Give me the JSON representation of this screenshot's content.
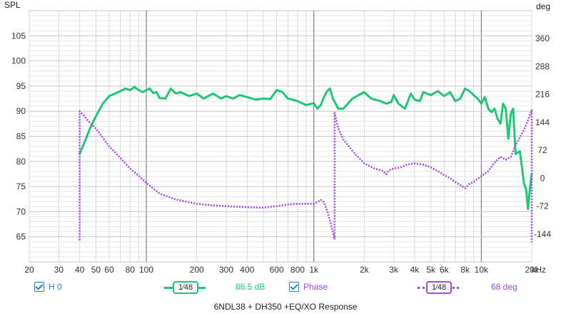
{
  "chart_data": {
    "type": "line",
    "title": "6NDL38 + DH350 +EQ/XO Response",
    "xlabel": "",
    "ylabel": "SPL",
    "y2label": "deg",
    "x_unit_label": "kHz",
    "x_scale": "log",
    "xlim": [
      20,
      20000
    ],
    "ylim": [
      60,
      110
    ],
    "y2lim": [
      -216,
      432
    ],
    "x_ticks": [
      {
        "v": 20,
        "label": "20"
      },
      {
        "v": 30,
        "label": "30"
      },
      {
        "v": 40,
        "label": "40"
      },
      {
        "v": 50,
        "label": "50"
      },
      {
        "v": 60,
        "label": "60"
      },
      {
        "v": 80,
        "label": "80"
      },
      {
        "v": 100,
        "label": "100"
      },
      {
        "v": 200,
        "label": "200"
      },
      {
        "v": 300,
        "label": "300"
      },
      {
        "v": 400,
        "label": "400"
      },
      {
        "v": 600,
        "label": "600"
      },
      {
        "v": 800,
        "label": "800"
      },
      {
        "v": 1000,
        "label": "1k"
      },
      {
        "v": 2000,
        "label": "2k"
      },
      {
        "v": 3000,
        "label": "3k"
      },
      {
        "v": 4000,
        "label": "4k"
      },
      {
        "v": 5000,
        "label": "5k"
      },
      {
        "v": 6000,
        "label": "6k"
      },
      {
        "v": 8000,
        "label": "8k"
      },
      {
        "v": 10000,
        "label": "10k"
      },
      {
        "v": 20000,
        "label": "20k"
      }
    ],
    "y_ticks": [
      {
        "v": 65,
        "label": "65"
      },
      {
        "v": 70,
        "label": "70"
      },
      {
        "v": 75,
        "label": "75"
      },
      {
        "v": 80,
        "label": "80"
      },
      {
        "v": 85,
        "label": "85"
      },
      {
        "v": 90,
        "label": "90"
      },
      {
        "v": 95,
        "label": "95"
      },
      {
        "v": 100,
        "label": "100"
      },
      {
        "v": 105,
        "label": "105"
      }
    ],
    "y2_ticks": [
      {
        "v": -144,
        "label": "-144"
      },
      {
        "v": -72,
        "label": "-72"
      },
      {
        "v": 0,
        "label": "0"
      },
      {
        "v": 72,
        "label": "72"
      },
      {
        "v": 144,
        "label": "144"
      },
      {
        "v": 216,
        "label": "216"
      },
      {
        "v": 288,
        "label": "288"
      },
      {
        "v": 360,
        "label": "360"
      }
    ],
    "grid": true,
    "legend_position": "bottom",
    "series": [
      {
        "name": "H 0",
        "axis": "left",
        "unit": "dB",
        "style": "solid",
        "color": "#1ec873",
        "x": [
          40,
          43,
          46,
          50,
          55,
          60,
          65,
          70,
          75,
          80,
          85,
          90,
          95,
          100,
          105,
          110,
          115,
          120,
          130,
          140,
          150,
          160,
          180,
          200,
          220,
          250,
          280,
          300,
          330,
          360,
          400,
          450,
          500,
          550,
          600,
          650,
          700,
          800,
          900,
          1000,
          1050,
          1100,
          1150,
          1200,
          1250,
          1300,
          1400,
          1500,
          1700,
          2000,
          2200,
          2500,
          2700,
          2900,
          3000,
          3200,
          3500,
          3800,
          4000,
          4300,
          4500,
          5000,
          5500,
          6000,
          6500,
          7000,
          7500,
          8000,
          8500,
          9000,
          9500,
          10000,
          10500,
          11000,
          11500,
          12000,
          12500,
          13000,
          13500,
          14000,
          14500,
          15000,
          15500,
          16000,
          17000,
          18000,
          18500,
          19000,
          19500,
          20000
        ],
        "y": [
          81.5,
          84,
          86.5,
          89,
          91.5,
          93,
          93.5,
          94,
          94.5,
          94.2,
          94.8,
          94.2,
          93.8,
          94.2,
          94.5,
          93.6,
          93.8,
          92.6,
          92.5,
          94.5,
          93.5,
          93.8,
          93,
          93.5,
          92.5,
          93.5,
          92.5,
          93,
          92.5,
          93.2,
          92.8,
          92.3,
          92.5,
          92.4,
          94.2,
          93.8,
          92.5,
          92,
          91.2,
          91.6,
          90.5,
          91.2,
          92.8,
          94,
          94.5,
          92.5,
          90.5,
          90.5,
          92.5,
          93.8,
          92.5,
          92,
          91.5,
          91.8,
          93.2,
          91.5,
          90.5,
          93.5,
          92.3,
          92,
          93.8,
          93.2,
          94,
          93,
          93.8,
          92,
          92.5,
          94.5,
          94,
          93.2,
          92.5,
          91.5,
          92.8,
          90.5,
          89.8,
          90.5,
          88.5,
          87.5,
          91.5,
          90.5,
          84.5,
          89.5,
          90.5,
          81.5,
          82,
          75.5,
          74.5,
          70.5,
          74.5,
          77.5
        ]
      },
      {
        "name": "Phase",
        "axis": "right",
        "unit": "deg",
        "style": "dotted",
        "color": "#a346f0",
        "segments": [
          {
            "x": [
              40,
              40,
              42,
              45,
              50,
              55,
              60,
              70,
              80,
              90,
              100,
              120,
              150,
              200,
              250,
              300,
              400,
              500,
              600,
              700,
              800,
              900,
              1000,
              1050,
              1100,
              1150,
              1200,
              1250,
              1300,
              1330
            ],
            "y": [
              -160,
              172,
              164,
              147,
              128,
              104,
              82,
              52,
              25,
              6,
              -12,
              -40,
              -55,
              -66,
              -70,
              -72,
              -75,
              -76,
              -72,
              -68,
              -66,
              -66,
              -66,
              -62,
              -56,
              -62,
              -84,
              -110,
              -140,
              -158
            ]
          },
          {
            "x": [
              1330,
              1330,
              1400,
              1500,
              1700,
              2000,
              2300,
              2600,
              2700,
              2800,
              3000,
              3300,
              3600,
              4000,
              4500,
              5000,
              5500,
              6000,
              6500,
              7000,
              7500,
              8000,
              8500,
              9000,
              9500,
              10000,
              11000,
              12000,
              13000,
              14000,
              15000,
              16000,
              17000,
              18000,
              19000,
              20000,
              20000
            ],
            "y": [
              -158,
              168,
              128,
              100,
              70,
              38,
              25,
              18,
              10,
              20,
              25,
              28,
              35,
              38,
              35,
              28,
              18,
              8,
              0,
              -10,
              -18,
              -26,
              -14,
              -10,
              -2,
              5,
              18,
              40,
              55,
              48,
              55,
              85,
              105,
              125,
              150,
              175,
              -165
            ]
          }
        ]
      }
    ]
  },
  "legend": {
    "item1": {
      "label": "H 0",
      "smoothing": "1⁄48",
      "value": "86.5 dB"
    },
    "item2": {
      "label": "Phase",
      "smoothing": "1⁄48",
      "value": "68 deg"
    }
  }
}
